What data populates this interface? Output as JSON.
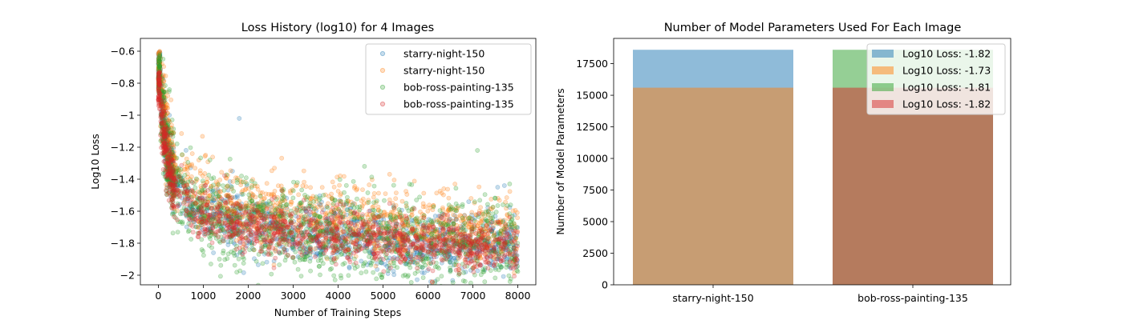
{
  "chart_data": [
    {
      "type": "scatter",
      "title": "Loss History (log10) for 4 Images",
      "xlabel": "Number of Training Steps",
      "ylabel": "Log10 Loss",
      "xlim": [
        -400,
        8400
      ],
      "ylim": [
        -2.06,
        -0.52
      ],
      "xticks": [
        0,
        1000,
        2000,
        3000,
        4000,
        5000,
        6000,
        7000,
        8000
      ],
      "yticks": [
        -2.0,
        -1.8,
        -1.6,
        -1.4,
        -1.2,
        -1.0,
        -0.8,
        -0.6
      ],
      "legend_position": "top-right",
      "marker_alpha": 0.25,
      "series": [
        {
          "name": "starry-night-150",
          "color": "#1f77b4",
          "start": -0.6,
          "plateau_at_1000": -1.56,
          "end": -1.82,
          "band": 0.09,
          "outliers": [
            [
              1800,
              -1.02
            ],
            [
              1650,
              -1.35
            ],
            [
              7550,
              -1.45
            ],
            [
              7700,
              -1.44
            ]
          ]
        },
        {
          "name": "starry-night-150",
          "color": "#ff7f0e",
          "start": -0.6,
          "plateau_at_1000": -1.45,
          "end": -1.73,
          "band": 0.11,
          "outliers": [
            [
              900,
              -1.28
            ],
            [
              6600,
              -1.43
            ]
          ]
        },
        {
          "name": "bob-ross-painting-135",
          "color": "#2ca02c",
          "start": -0.62,
          "plateau_at_1000": -1.56,
          "end": -1.81,
          "band": 0.14,
          "outliers": [
            [
              7100,
              -1.22
            ],
            [
              1850,
              -1.38
            ]
          ]
        },
        {
          "name": "bob-ross-painting-135",
          "color": "#d62728",
          "start": -0.73,
          "plateau_at_1000": -1.58,
          "end": -1.82,
          "band": 0.08,
          "outliers": []
        }
      ]
    },
    {
      "type": "bar",
      "title": "Number of Model Parameters Used For Each Image",
      "xlabel": "",
      "ylabel": "Number of Model Parameters",
      "categories": [
        "starry-night-150",
        "bob-ross-painting-135"
      ],
      "ylim": [
        0,
        19500
      ],
      "yticks": [
        0,
        2500,
        5000,
        7500,
        10000,
        12500,
        15000,
        17500
      ],
      "legend_position": "top-right",
      "bar_alpha": 0.5,
      "series": [
        {
          "name": "Log10 Loss: -1.82",
          "color": "#1f77b4",
          "category": 0,
          "value": 18600
        },
        {
          "name": "Log10 Loss: -1.73",
          "color": "#ff7f0e",
          "category": 0,
          "value": 15600
        },
        {
          "name": "Log10 Loss: -1.81",
          "color": "#2ca02c",
          "category": 1,
          "value": 18600
        },
        {
          "name": "Log10 Loss: -1.82",
          "color": "#d62728",
          "category": 1,
          "value": 15600
        }
      ]
    }
  ]
}
